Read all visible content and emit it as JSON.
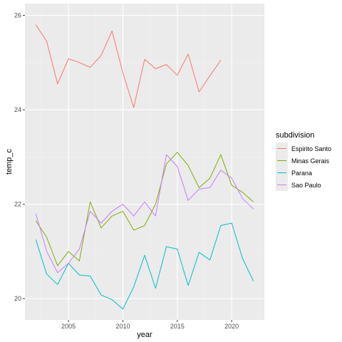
{
  "chart_data": {
    "type": "line",
    "xlabel": "year",
    "ylabel": "temp_c",
    "x_ticks": [
      2005,
      2010,
      2015,
      2020
    ],
    "y_ticks": [
      20,
      22,
      24,
      26
    ],
    "xlim": [
      2001.0,
      2023.0
    ],
    "ylim": [
      19.55,
      26.25
    ],
    "grid": true,
    "legend": {
      "title": "subdivision",
      "position": "right"
    },
    "colors": {
      "panel_bg": "#ebebeb",
      "grid_major": "#ffffff",
      "grid_minor": "#f5f5f5",
      "tick_text": "#4d4d4d"
    },
    "series": [
      {
        "name": "Espirito Santo",
        "color": "#F8766D",
        "x": [
          2002,
          2003,
          2004,
          2005,
          2006,
          2007,
          2008,
          2009,
          2010,
          2011,
          2012,
          2013,
          2014,
          2015,
          2016,
          2017,
          2018,
          2019
        ],
        "values": [
          25.8,
          25.45,
          24.55,
          25.08,
          25.0,
          24.9,
          25.15,
          25.67,
          24.78,
          24.05,
          25.07,
          24.87,
          24.96,
          24.73,
          25.18,
          24.38,
          24.72,
          25.05
        ]
      },
      {
        "name": "Minas Gerais",
        "color": "#7CAE00",
        "x": [
          2002,
          2003,
          2004,
          2005,
          2006,
          2007,
          2008,
          2009,
          2010,
          2011,
          2012,
          2013,
          2014,
          2015,
          2016,
          2017,
          2018,
          2019,
          2020,
          2021,
          2022
        ],
        "values": [
          21.65,
          21.3,
          20.7,
          21.0,
          20.8,
          22.05,
          21.5,
          21.75,
          21.85,
          21.45,
          21.55,
          22.0,
          22.85,
          23.1,
          22.82,
          22.35,
          22.55,
          23.05,
          22.4,
          22.25,
          22.05
        ]
      },
      {
        "name": "Parana",
        "color": "#00BFC4",
        "x": [
          2002,
          2003,
          2004,
          2005,
          2006,
          2007,
          2008,
          2009,
          2010,
          2011,
          2012,
          2013,
          2014,
          2015,
          2016,
          2017,
          2018,
          2019,
          2020,
          2021,
          2022
        ],
        "values": [
          21.25,
          20.52,
          20.3,
          20.75,
          20.5,
          20.48,
          20.08,
          19.98,
          19.78,
          20.25,
          20.92,
          20.22,
          21.1,
          21.05,
          20.28,
          20.98,
          20.82,
          21.55,
          21.6,
          20.85,
          20.37
        ]
      },
      {
        "name": "Sao Paulo",
        "color": "#C77CFF",
        "x": [
          2002,
          2003,
          2004,
          2005,
          2006,
          2007,
          2008,
          2009,
          2010,
          2011,
          2012,
          2013,
          2014,
          2015,
          2016,
          2017,
          2018,
          2019,
          2020,
          2021,
          2022
        ],
        "values": [
          21.8,
          21.0,
          20.55,
          20.75,
          21.05,
          21.85,
          21.6,
          21.85,
          22.0,
          21.75,
          22.05,
          21.75,
          23.05,
          22.8,
          22.08,
          22.32,
          22.35,
          22.72,
          22.55,
          22.12,
          21.9
        ]
      }
    ]
  }
}
